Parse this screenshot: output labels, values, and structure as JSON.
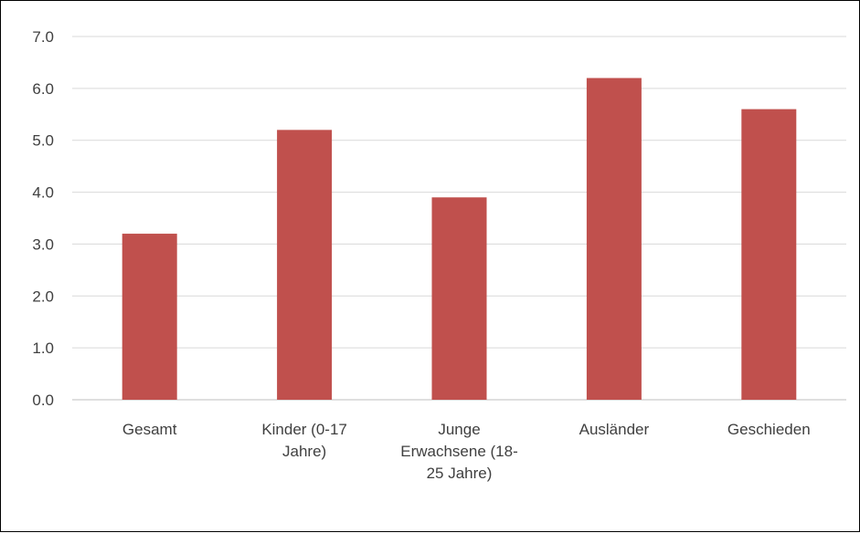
{
  "chart_data": {
    "type": "bar",
    "categories": [
      "Gesamt",
      "Kinder (0-17 Jahre)",
      "Junge Erwachsene (18-25 Jahre)",
      "Ausländer",
      "Geschieden"
    ],
    "category_lines": [
      [
        "Gesamt"
      ],
      [
        "Kinder (0-17",
        "Jahre)"
      ],
      [
        "Junge",
        "Erwachsene (18-",
        "25 Jahre)"
      ],
      [
        "Ausländer"
      ],
      [
        "Geschieden"
      ]
    ],
    "values": [
      3.2,
      5.2,
      3.9,
      6.2,
      5.6
    ],
    "ylim": [
      0,
      7
    ],
    "yticks": [
      "0.0",
      "1.0",
      "2.0",
      "3.0",
      "4.0",
      "5.0",
      "6.0",
      "7.0"
    ],
    "title": "",
    "xlabel": "",
    "ylabel": "",
    "grid": true,
    "legend": "none",
    "bar_color": "#c0504d"
  }
}
